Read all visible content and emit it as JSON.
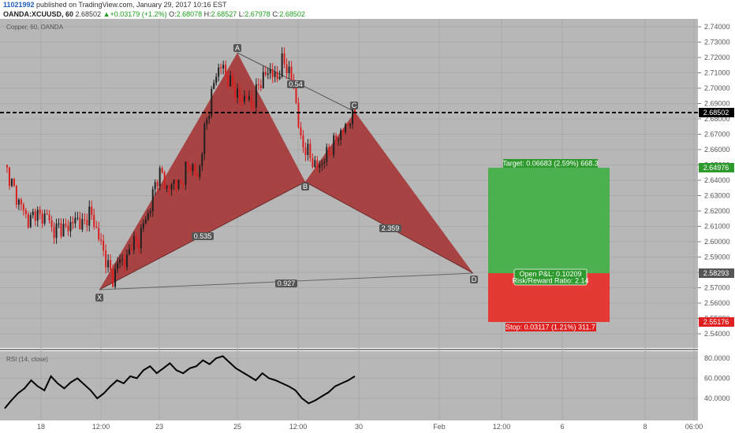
{
  "header": {
    "user_id": "11021992",
    "published_text": " published on TradingView.com, January 29, 2017 10:16 EST",
    "symbol": "OANDA:XCUUSD, 60",
    "last": "2.68502",
    "change_arrow": "▲",
    "change": "+0.03179 (+1.2%)",
    "o_label": "O:",
    "o_value": "2.68078",
    "h_label": "H:",
    "h_value": "2.68527",
    "l_label": "L:",
    "l_value": "2.67978",
    "c_label": "C:",
    "c_value": "2.68502"
  },
  "chart_title": "Copper, 60, OANDA",
  "rsi_title": "RSI (14, close)",
  "colors": {
    "plot_bg": "#b7b7b7",
    "pattern_fill": "#a52a2a",
    "candle_up": "#1f1f1f",
    "candle_down": "#d81e1e",
    "target_zone": "#4caf50",
    "stop_zone": "#e53935",
    "price_line": "#000000"
  },
  "price_axis_ticks": [
    "2.74000",
    "2.73000",
    "2.72000",
    "2.71000",
    "2.70000",
    "2.69000",
    "2.68000",
    "2.67000",
    "2.66000",
    "2.65000",
    "2.64000",
    "2.63000",
    "2.62000",
    "2.61000",
    "2.60000",
    "2.59000",
    "2.58000",
    "2.57000",
    "2.56000",
    "2.55000",
    "2.54000"
  ],
  "rsi_axis_ticks": [
    "80.0000",
    "60.0000",
    "40.0000"
  ],
  "time_axis_ticks": [
    "18",
    "12:00",
    "23",
    "25",
    "12:00",
    "30",
    "Feb",
    "12:00",
    "6",
    "8",
    "06:00"
  ],
  "price_tags": {
    "last": "2.68502",
    "target": "2.64976",
    "entry": "2.58293",
    "stop": "2.55176"
  },
  "pattern_points": [
    "X",
    "A",
    "B",
    "C",
    "D"
  ],
  "ratios": {
    "xab": "0.535",
    "abc": "0.54",
    "bcd": "2.359",
    "xad": "0.927"
  },
  "position": {
    "target_text": "Target: 0.06683 (2.59%) 668.3",
    "open_pl": "Open P&L: 0.10209",
    "rr": "Risk/Reward Ratio: 2.14",
    "stop_text": "Stop: 0.03117 (1.21%) 311.7"
  },
  "chart_data": {
    "type": "candlestick",
    "title": "Copper, 60, OANDA",
    "y_range": [
      2.535,
      2.745
    ],
    "y_ticks": [
      2.74,
      2.73,
      2.72,
      2.71,
      2.7,
      2.69,
      2.68,
      2.67,
      2.66,
      2.65,
      2.64,
      2.63,
      2.62,
      2.61,
      2.6,
      2.59,
      2.58,
      2.57,
      2.56,
      2.55,
      2.54
    ],
    "x_ticks": [
      "18",
      "12:00",
      "23",
      "25",
      "12:00",
      "30",
      "Feb",
      "12:00",
      "6",
      "8",
      "06:00"
    ],
    "approx_close_path": [
      2.65,
      2.64,
      2.628,
      2.622,
      2.612,
      2.62,
      2.615,
      2.618,
      2.606,
      2.61,
      2.608,
      2.612,
      2.615,
      2.61,
      2.62,
      2.61,
      2.598,
      2.585,
      2.575,
      2.59,
      2.585,
      2.6,
      2.598,
      2.612,
      2.62,
      2.64,
      2.645,
      2.632,
      2.64,
      2.635,
      2.648,
      2.65,
      2.64,
      2.67,
      2.69,
      2.71,
      2.715,
      2.705,
      2.7,
      2.692,
      2.695,
      2.688,
      2.702,
      2.708,
      2.712,
      2.705,
      2.718,
      2.712,
      2.7,
      2.665,
      2.66,
      2.652,
      2.648,
      2.655,
      2.66,
      2.668,
      2.672,
      2.678,
      2.685
    ],
    "harmonic_pattern": {
      "points": [
        {
          "label": "X",
          "price": 2.572
        },
        {
          "label": "A",
          "price": 2.721
        },
        {
          "label": "B",
          "price": 2.642
        },
        {
          "label": "C",
          "price": 2.685
        },
        {
          "label": "D",
          "price": 2.583
        }
      ],
      "ratios": {
        "XAB": 0.535,
        "ABC": 0.54,
        "BCD": 2.359,
        "XAD": 0.927
      }
    },
    "last_price": 2.68502,
    "position": {
      "entry": 2.58293,
      "target": 2.64976,
      "stop": 2.55176,
      "target_pts": 0.06683,
      "target_pct": 2.59,
      "stop_pts": 0.03117,
      "stop_pct": 1.21,
      "open_pl": 0.10209,
      "rr": 2.14
    },
    "rsi": {
      "title": "RSI (14, close)",
      "y_ticks": [
        80,
        60,
        40
      ],
      "approx_values": [
        30,
        38,
        45,
        50,
        58,
        52,
        48,
        62,
        55,
        50,
        56,
        60,
        54,
        48,
        40,
        45,
        52,
        58,
        55,
        62,
        60,
        68,
        72,
        65,
        70,
        75,
        68,
        65,
        70,
        72,
        78,
        74,
        80,
        82,
        76,
        70,
        66,
        62,
        58,
        65,
        60,
        58,
        55,
        52,
        48,
        40,
        35,
        38,
        42,
        46,
        52,
        55,
        58,
        62
      ]
    }
  }
}
